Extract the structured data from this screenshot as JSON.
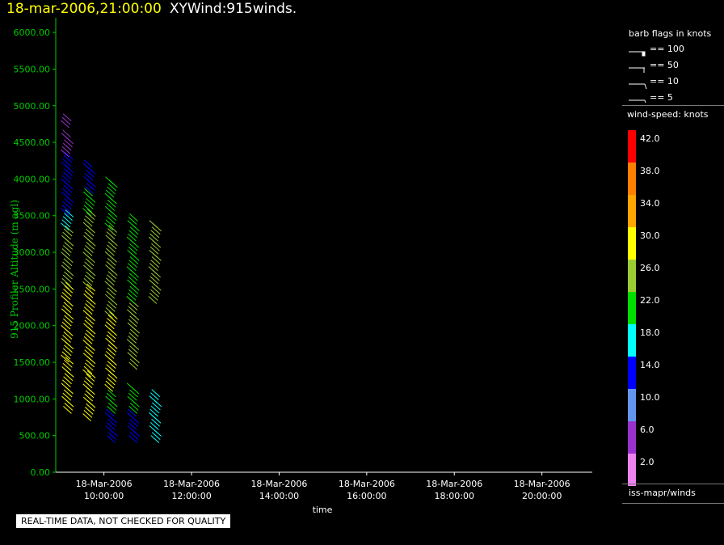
{
  "header": {
    "timestamp": "18-mar-2006,21:00:00",
    "title": "XYWind:915winds."
  },
  "notice": "REAL-TIME DATA, NOT CHECKED FOR QUALITY",
  "legend": {
    "barb_title": "barb flags in knots",
    "barb_items": [
      "== 100",
      "== 50",
      "== 10",
      "== 5"
    ],
    "speed_title": "wind-speed: knots",
    "colorbar": [
      {
        "label": "42.0",
        "color": "#ff0000"
      },
      {
        "label": "38.0",
        "color": "#ff7f00"
      },
      {
        "label": "34.0",
        "color": "#ffa500"
      },
      {
        "label": "30.0",
        "color": "#ffff00"
      },
      {
        "label": "26.0",
        "color": "#9acd32"
      },
      {
        "label": "22.0",
        "color": "#00e000"
      },
      {
        "label": "18.0",
        "color": "#00ffff"
      },
      {
        "label": "14.0",
        "color": "#0000ff"
      },
      {
        "label": "10.0",
        "color": "#6495ed"
      },
      {
        "label": "6.0",
        "color": "#9932cc"
      },
      {
        "label": "2.0",
        "color": "#ee82ee"
      }
    ],
    "source": "iss-mapr/winds"
  },
  "chart_data": {
    "type": "scatter",
    "subtype": "wind-barbs",
    "xlabel": "time",
    "ylabel": "915 Profiler Altitude (m agl)",
    "x_ticks": [
      {
        "t": 10,
        "date": "18-Mar-2006",
        "time": "10:00:00"
      },
      {
        "t": 12,
        "date": "18-Mar-2006",
        "time": "12:00:00"
      },
      {
        "t": 14,
        "date": "18-Mar-2006",
        "time": "14:00:00"
      },
      {
        "t": 16,
        "date": "18-Mar-2006",
        "time": "16:00:00"
      },
      {
        "t": 18,
        "date": "18-Mar-2006",
        "time": "18:00:00"
      },
      {
        "t": 20,
        "date": "18-Mar-2006",
        "time": "20:00:00"
      }
    ],
    "xlim": [
      8.9,
      21.15
    ],
    "ylim": [
      0,
      6200
    ],
    "y_ticks": [
      "0.00",
      "500.00",
      "1000.00",
      "1500.00",
      "2000.00",
      "2500.00",
      "3000.00",
      "3500.00",
      "4000.00",
      "4500.00",
      "5000.00",
      "5500.00",
      "6000.00"
    ],
    "axis_color": "#00cc00",
    "profiles": [
      {
        "time": "09:10",
        "segments": [
          {
            "from": 900,
            "to": 1600,
            "speed": 30
          },
          {
            "from": 1600,
            "to": 2600,
            "speed": 30
          },
          {
            "from": 2600,
            "to": 3400,
            "speed": 26
          },
          {
            "from": 3400,
            "to": 3600,
            "speed": 18
          },
          {
            "from": 3600,
            "to": 4400,
            "speed": 14
          },
          {
            "from": 4400,
            "to": 4700,
            "speed": 6
          },
          {
            "from": 4800,
            "to": 4900,
            "speed": 6
          }
        ]
      },
      {
        "time": "09:40",
        "segments": [
          {
            "from": 800,
            "to": 1400,
            "speed": 30
          },
          {
            "from": 1400,
            "to": 2600,
            "speed": 30
          },
          {
            "from": 2600,
            "to": 3600,
            "speed": 26
          },
          {
            "from": 3600,
            "to": 3900,
            "speed": 22
          },
          {
            "from": 3900,
            "to": 4300,
            "speed": 14
          }
        ]
      },
      {
        "time": "10:10",
        "segments": [
          {
            "from": 500,
            "to": 900,
            "speed": 14
          },
          {
            "from": 900,
            "to": 1150,
            "speed": 22
          },
          {
            "from": 1200,
            "to": 2200,
            "speed": 30
          },
          {
            "from": 2200,
            "to": 3400,
            "speed": 26
          },
          {
            "from": 3400,
            "to": 4050,
            "speed": 22
          }
        ]
      },
      {
        "time": "10:40",
        "segments": [
          {
            "from": 500,
            "to": 900,
            "speed": 14
          },
          {
            "from": 900,
            "to": 1250,
            "speed": 22
          },
          {
            "from": 1500,
            "to": 2400,
            "speed": 26
          },
          {
            "from": 2400,
            "to": 3550,
            "speed": 22
          }
        ]
      },
      {
        "time": "11:10",
        "segments": [
          {
            "from": 500,
            "to": 1150,
            "speed": 18
          },
          {
            "from": 2400,
            "to": 3450,
            "speed": 26
          }
        ]
      }
    ]
  }
}
